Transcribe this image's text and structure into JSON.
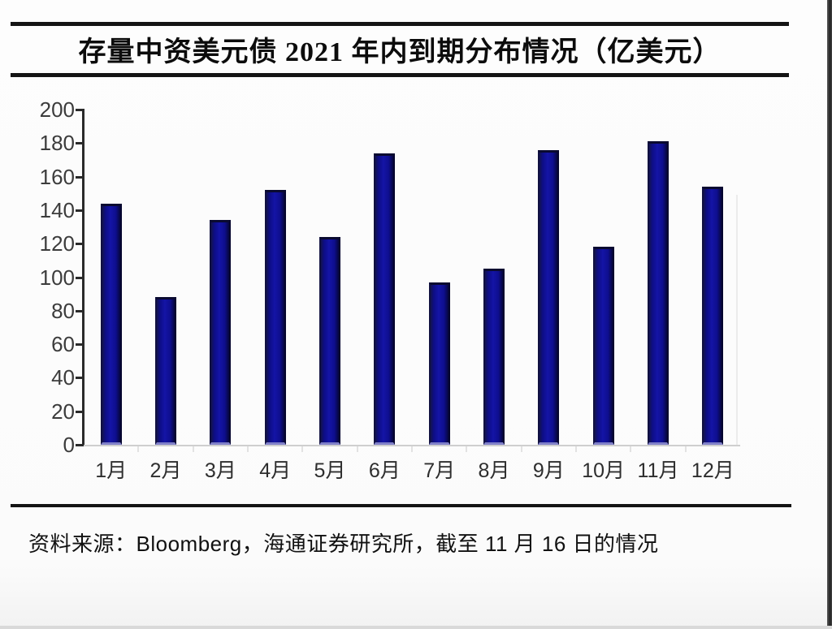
{
  "header": {
    "title": "存量中资美元债 2021 年内到期分布情况（亿美元）"
  },
  "footer": {
    "source": "资料来源：Bloomberg，海通证券研究所，截至 11 月 16 日的情况"
  },
  "chart_data": {
    "type": "bar",
    "title": "存量中资美元债 2021 年内到期分布情况（亿美元）",
    "categories": [
      "1月",
      "2月",
      "3月",
      "4月",
      "5月",
      "6月",
      "7月",
      "8月",
      "9月",
      "10月",
      "11月",
      "12月"
    ],
    "values": [
      144,
      88,
      134,
      152,
      124,
      174,
      97,
      105,
      176,
      118,
      181,
      154
    ],
    "xlabel": "",
    "ylabel": "",
    "ylim": [
      0,
      200
    ],
    "yticks": [
      0,
      20,
      40,
      60,
      80,
      100,
      120,
      140,
      160,
      180,
      200
    ],
    "grid": "off",
    "legend": "none",
    "unit": "亿美元"
  },
  "colors": {
    "bar_fill": "#0f0f8c",
    "bar_edge": "#05052e",
    "bar_base_edge": "#8080c8",
    "axis": "#2a2a2a",
    "tick_label": "#3c3c3c",
    "rule": "#141414",
    "baseline": "#cfcfcf"
  }
}
